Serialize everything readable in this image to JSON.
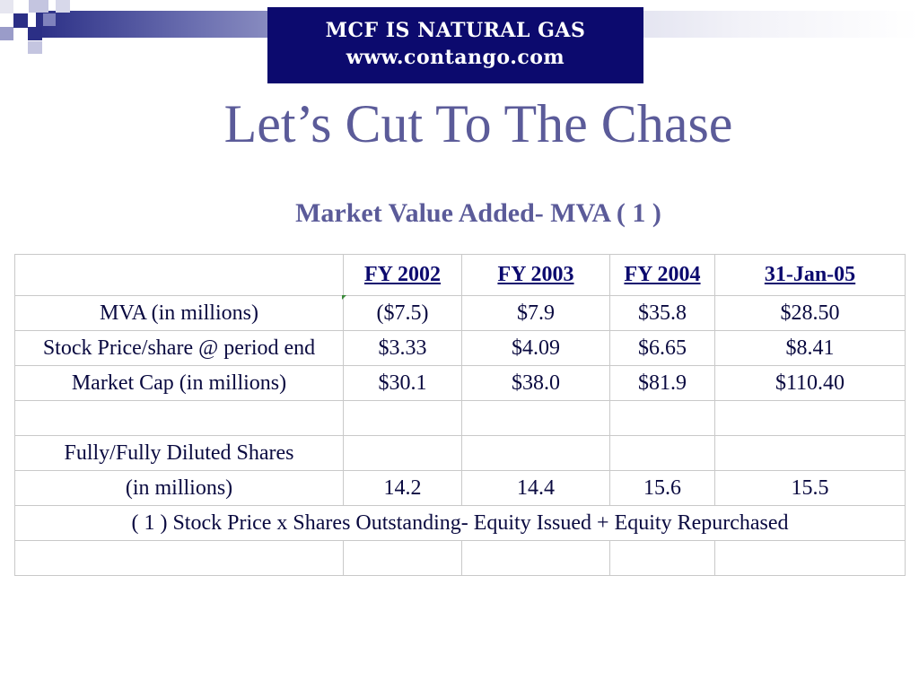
{
  "banner": {
    "line1": "MCF IS NATURAL GAS",
    "line2": "www.contango.com"
  },
  "slide": {
    "title": "Let’s Cut To The Chase",
    "subtitle": "Market Value Added- MVA ( 1 )"
  },
  "table": {
    "headers": [
      "",
      "FY 2002",
      "FY 2003",
      "FY 2004",
      "31-Jan-05"
    ],
    "rows": [
      [
        "MVA (in millions)",
        "($7.5)",
        "$7.9",
        "$35.8",
        "$28.50"
      ],
      [
        "Stock Price/share @ period end",
        "$3.33",
        "$4.09",
        "$6.65",
        "$8.41"
      ],
      [
        "Market Cap (in millions)",
        "$30.1",
        "$38.0",
        "$81.9",
        "$110.40"
      ],
      [
        "",
        "",
        "",
        "",
        ""
      ],
      [
        "Fully/Fully Diluted Shares",
        "",
        "",
        "",
        ""
      ],
      [
        "(in millions)",
        "14.2",
        "14.4",
        "15.6",
        "15.5"
      ]
    ],
    "footnote": "( 1 ) Stock Price  x  Shares Outstanding- Equity Issued + Equity Repurchased"
  },
  "colors": {
    "banner_bg": "#0c0a6e",
    "title": "#5b5b99"
  }
}
